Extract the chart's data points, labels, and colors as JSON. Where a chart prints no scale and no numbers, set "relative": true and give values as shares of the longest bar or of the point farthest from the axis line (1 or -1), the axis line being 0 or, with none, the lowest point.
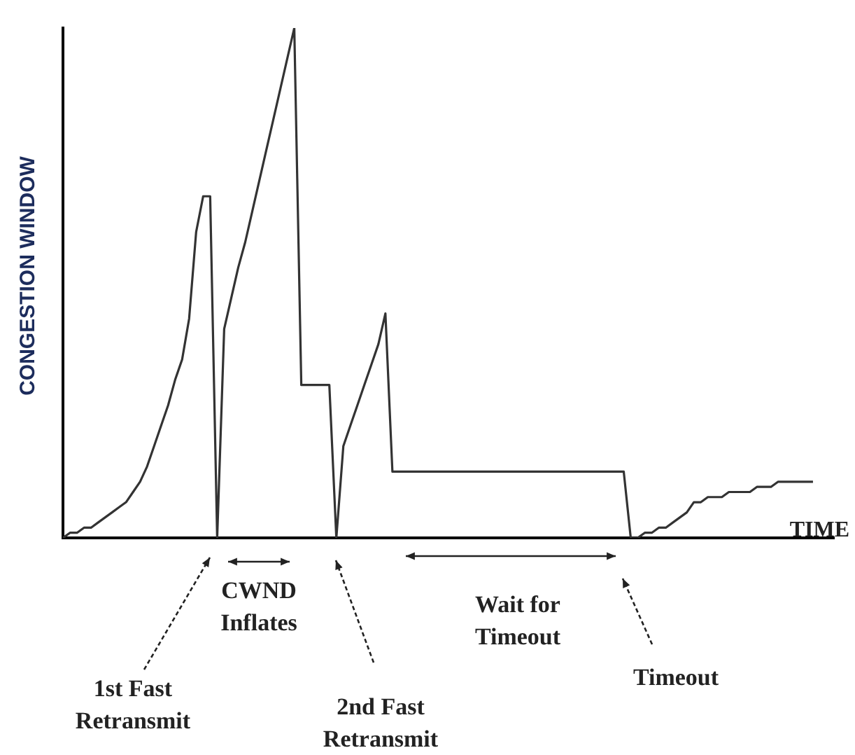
{
  "chart_data": {
    "type": "line",
    "relative": true,
    "xlabel": "TIME",
    "ylabel": "CONGESTION WINDOW",
    "tick_labels": false,
    "grid": false,
    "legend": false,
    "marker": "none",
    "line_style": "solid",
    "categories": [
      null,
      null,
      null,
      null,
      null,
      null,
      null,
      null,
      null,
      null,
      null,
      null,
      null,
      null,
      null,
      null,
      null,
      null,
      null,
      null,
      null,
      null,
      null,
      null,
      null,
      null,
      null,
      null,
      null,
      null,
      null,
      null,
      null,
      null,
      null,
      null,
      null,
      null,
      null,
      null,
      null,
      null,
      null,
      null,
      null,
      null,
      null,
      null,
      null,
      null,
      null,
      null,
      null,
      null,
      null,
      null,
      null,
      null,
      null,
      null,
      null,
      null,
      null,
      null,
      null,
      null,
      null,
      null,
      null,
      null,
      null,
      null,
      null,
      null,
      null,
      null,
      null,
      null,
      null,
      null,
      null,
      null,
      null,
      null,
      null,
      null,
      null,
      null,
      null,
      null,
      null,
      null,
      null,
      null,
      null,
      null,
      null,
      null,
      null,
      null,
      null,
      null,
      null,
      null,
      null,
      null,
      null,
      null,
      null,
      null,
      null
    ],
    "series": [
      {
        "color": "#333333",
        "values": [
          0,
          0.01,
          0.01,
          0.02,
          0.02,
          0.03,
          0.04,
          0.05,
          0.06,
          0.07,
          0.09,
          0.11,
          0.14,
          0.18,
          0.22,
          0.26,
          0.31,
          0.35,
          0.43,
          0.6,
          0.67,
          0.67,
          0,
          0.41,
          0.47,
          0.53,
          0.58,
          0.64,
          0.7,
          0.76,
          0.82,
          0.88,
          0.94,
          1,
          0.3,
          0.3,
          0.3,
          0.3,
          0.3,
          0,
          0.18,
          0.22,
          0.26,
          0.3,
          0.34,
          0.38,
          0.44,
          0.13,
          0.13,
          0.13,
          0.13,
          0.13,
          0.13,
          0.13,
          0.13,
          0.13,
          0.13,
          0.13,
          0.13,
          0.13,
          0.13,
          0.13,
          0.13,
          0.13,
          0.13,
          0.13,
          0.13,
          0.13,
          0.13,
          0.13,
          0.13,
          0.13,
          0.13,
          0.13,
          0.13,
          0.13,
          0.13,
          0.13,
          0.13,
          0.13,
          0.13,
          0,
          0,
          0.01,
          0.01,
          0.02,
          0.02,
          0.03,
          0.04,
          0.05,
          0.07,
          0.07,
          0.08,
          0.08,
          0.08,
          0.09,
          0.09,
          0.09,
          0.09,
          0.1,
          0.1,
          0.1,
          0.11,
          0.11,
          0.11,
          0.11,
          0.11,
          0.11,
          null,
          null,
          null
        ]
      }
    ],
    "annotations": [
      "1st Fast Retransmit",
      "CWND Inflates",
      "2nd Fast Retransmit",
      "Wait for Timeout",
      "Timeout"
    ]
  }
}
